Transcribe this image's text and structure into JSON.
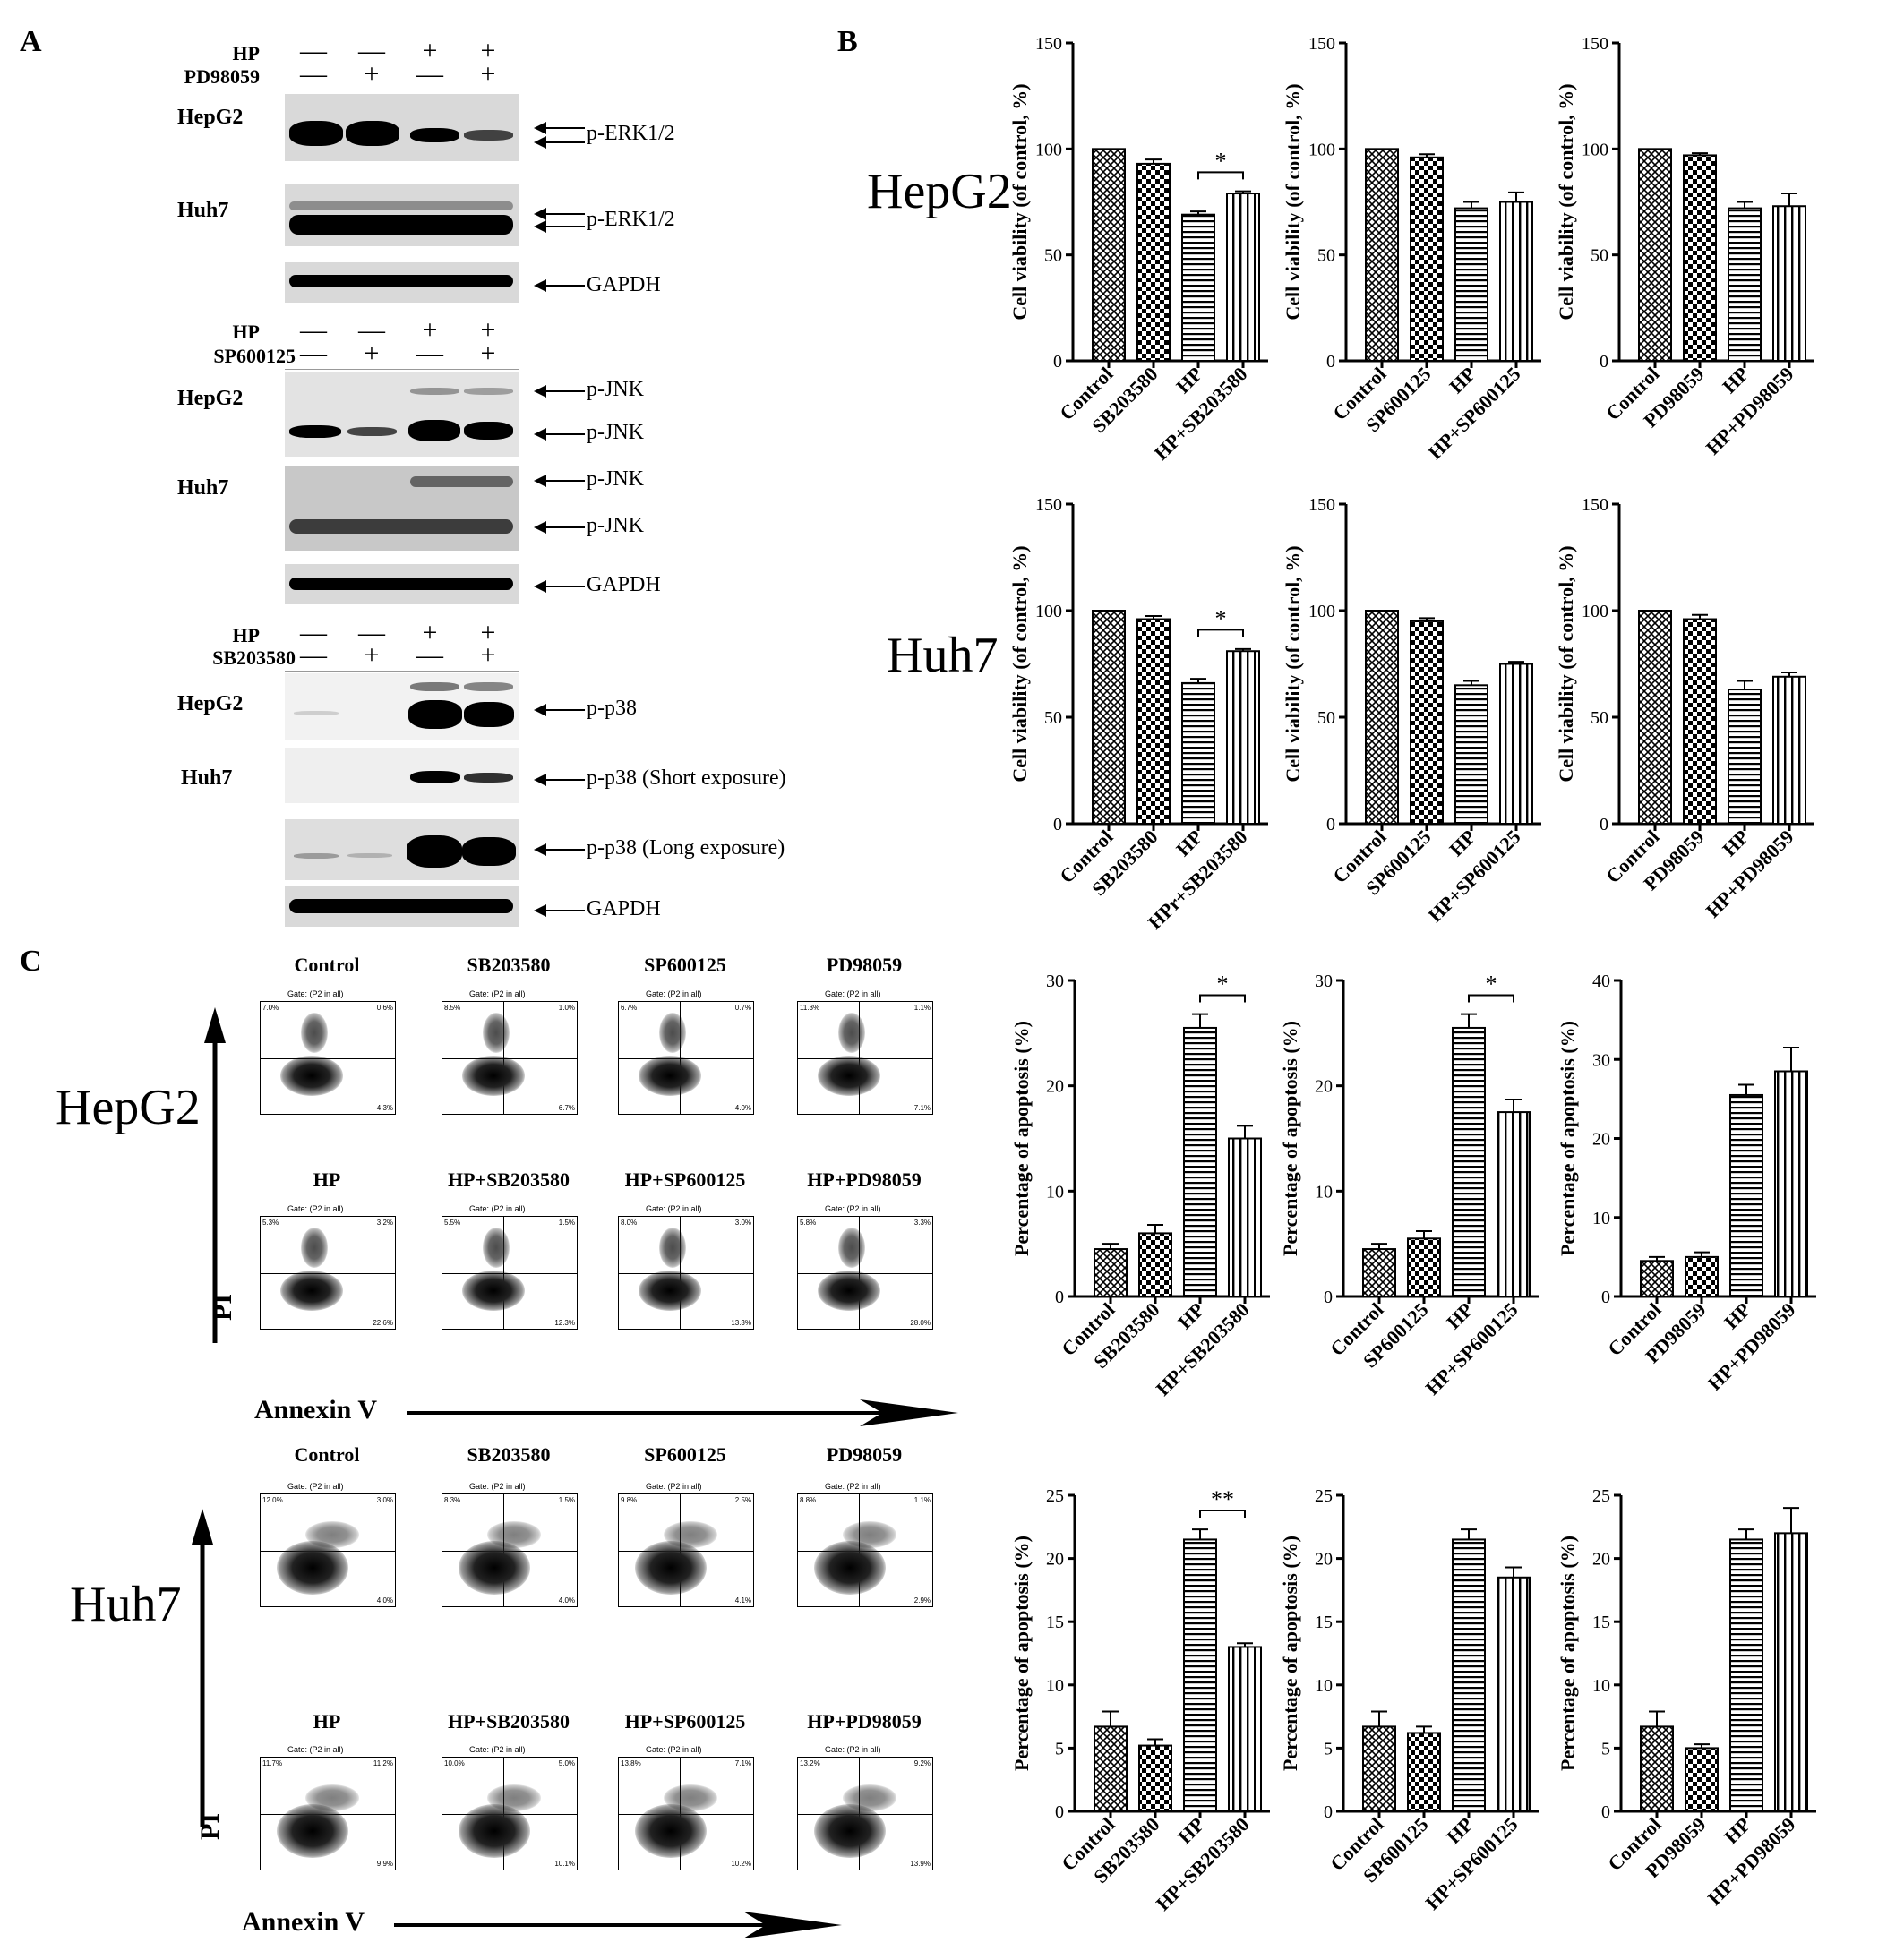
{
  "panels": {
    "A": "A",
    "B": "B",
    "C": "C"
  },
  "blots": {
    "erk": {
      "hp_label": "HP",
      "inh_label": "PD98059",
      "hp_signs": [
        "—",
        "—",
        "+",
        "+"
      ],
      "inh_signs": [
        "—",
        "+",
        "—",
        "+"
      ],
      "cell1": "HepG2",
      "cell2": "Huh7",
      "l1": "p-ERK1/2",
      "l2": "p-ERK1/2",
      "gapdh": "GAPDH"
    },
    "jnk": {
      "hp_label": "HP",
      "inh_label": "SP600125",
      "hp_signs": [
        "—",
        "—",
        "+",
        "+"
      ],
      "inh_signs": [
        "—",
        "+",
        "—",
        "+"
      ],
      "cell1": "HepG2",
      "cell2": "Huh7",
      "l1a": "p-JNK",
      "l1b": "p-JNK",
      "l2a": "p-JNK",
      "l2b": "p-JNK",
      "gapdh": "GAPDH"
    },
    "p38": {
      "hp_label": "HP",
      "inh_label": "SB203580",
      "hp_signs": [
        "—",
        "—",
        "+",
        "+"
      ],
      "inh_signs": [
        "—",
        "+",
        "—",
        "+"
      ],
      "cell1": "HepG2",
      "cell2": "Huh7",
      "l1": "p-p38",
      "l2": "p-p38 (Short exposure)",
      "l3": "p-p38 (Long exposure)",
      "gapdh": "GAPDH"
    }
  },
  "row_labels": {
    "b_hepg2": "HepG2",
    "b_huh7": "Huh7",
    "c_hepg2": "HepG2",
    "c_huh7": "Huh7"
  },
  "flow": {
    "hepg2_top": [
      "Control",
      "SB203580",
      "SP600125",
      "PD98059"
    ],
    "hepg2_bottom": [
      "HP",
      "HP+SB203580",
      "HP+SP600125",
      "HP+PD98059"
    ],
    "huh7_top": [
      "Control",
      "SB203580",
      "SP600125",
      "PD98059"
    ],
    "huh7_bottom": [
      "HP",
      "HP+SB203580",
      "HP+SP600125",
      "HP+PD98059"
    ],
    "gate": "Gate: (P2 in all)",
    "pi": "PI",
    "annexin": "Annexin V",
    "hepg2_q": [
      [
        "7.0%",
        "0.6%",
        "4.3%"
      ],
      [
        "8.5%",
        "1.0%",
        "6.7%"
      ],
      [
        "6.7%",
        "0.7%",
        "4.0%"
      ],
      [
        "11.3%",
        "1.1%",
        "7.1%"
      ],
      [
        "5.3%",
        "3.2%",
        "22.6%"
      ],
      [
        "5.5%",
        "1.5%",
        "12.3%"
      ],
      [
        "8.0%",
        "3.0%",
        "13.3%"
      ],
      [
        "5.8%",
        "3.3%",
        "28.0%"
      ]
    ],
    "huh7_q": [
      [
        "12.0%",
        "3.0%",
        "4.0%"
      ],
      [
        "8.3%",
        "1.5%",
        "4.0%"
      ],
      [
        "9.8%",
        "2.5%",
        "4.1%"
      ],
      [
        "8.8%",
        "1.1%",
        "2.9%"
      ],
      [
        "11.7%",
        "11.2%",
        "9.9%"
      ],
      [
        "10.0%",
        "5.0%",
        "10.1%"
      ],
      [
        "13.8%",
        "7.1%",
        "10.2%"
      ],
      [
        "13.2%",
        "9.2%",
        "13.9%"
      ]
    ]
  },
  "chart_data": [
    {
      "type": "bar",
      "id": "b1",
      "ylabel": "Cell viability (of control, %)",
      "categories": [
        "Control",
        "SB203580",
        "HP",
        "HP+SB203580"
      ],
      "values": [
        100,
        93,
        69,
        79
      ],
      "errors": [
        0,
        2,
        1.5,
        1
      ],
      "ylim": [
        0,
        150
      ],
      "yticks": [
        0,
        50,
        100,
        150
      ],
      "sig": {
        "from": 2,
        "to": 3,
        "label": "*"
      }
    },
    {
      "type": "bar",
      "id": "b2",
      "ylabel": "Cell viability (of control, %)",
      "categories": [
        "Control",
        "SP600125",
        "HP",
        "HP+SP600125"
      ],
      "values": [
        100,
        96,
        72,
        75
      ],
      "errors": [
        0,
        1.5,
        3,
        4.5
      ],
      "ylim": [
        0,
        150
      ],
      "yticks": [
        0,
        50,
        100,
        150
      ]
    },
    {
      "type": "bar",
      "id": "b3",
      "ylabel": "Cell viability (of control, %)",
      "categories": [
        "Control",
        "PD98059",
        "HP",
        "HP+PD98059"
      ],
      "values": [
        100,
        97,
        72,
        73
      ],
      "errors": [
        0,
        1,
        3,
        6
      ],
      "ylim": [
        0,
        150
      ],
      "yticks": [
        0,
        50,
        100,
        150
      ]
    },
    {
      "type": "bar",
      "id": "b4",
      "ylabel": "Cell viability (of control, %)",
      "categories": [
        "Control",
        "SB203580",
        "HP",
        "HPr+SB203580"
      ],
      "values": [
        100,
        96,
        66,
        81
      ],
      "errors": [
        0,
        1.5,
        2,
        1
      ],
      "ylim": [
        0,
        150
      ],
      "yticks": [
        0,
        50,
        100,
        150
      ],
      "sig": {
        "from": 2,
        "to": 3,
        "label": "*"
      }
    },
    {
      "type": "bar",
      "id": "b5",
      "ylabel": "Cell viability (of control, %)",
      "categories": [
        "Control",
        "SP600125",
        "HP",
        "HP+SP600125"
      ],
      "values": [
        100,
        95,
        65,
        75
      ],
      "errors": [
        0,
        1.5,
        2,
        1
      ],
      "ylim": [
        0,
        150
      ],
      "yticks": [
        0,
        50,
        100,
        150
      ]
    },
    {
      "type": "bar",
      "id": "b6",
      "ylabel": "Cell viability (of control, %)",
      "categories": [
        "Control",
        "PD98059",
        "HP",
        "HP+PD98059"
      ],
      "values": [
        100,
        96,
        63,
        69
      ],
      "errors": [
        0,
        2,
        4,
        2
      ],
      "ylim": [
        0,
        150
      ],
      "yticks": [
        0,
        50,
        100,
        150
      ]
    },
    {
      "type": "bar",
      "id": "c1",
      "ylabel": "Percentage of apoptosis (%)",
      "categories": [
        "Control",
        "SB203580",
        "HP",
        "HP+SB203580"
      ],
      "values": [
        4.5,
        6,
        25.5,
        15
      ],
      "errors": [
        0.5,
        0.8,
        1.3,
        1.2
      ],
      "ylim": [
        0,
        30
      ],
      "yticks": [
        0,
        10,
        20,
        30
      ],
      "sig": {
        "from": 2,
        "to": 3,
        "label": "*"
      }
    },
    {
      "type": "bar",
      "id": "c2",
      "ylabel": "Percentage of apoptosis (%)",
      "categories": [
        "Control",
        "SP600125",
        "HP",
        "HP+SP600125"
      ],
      "values": [
        4.5,
        5.5,
        25.5,
        17.5
      ],
      "errors": [
        0.5,
        0.7,
        1.3,
        1.2
      ],
      "ylim": [
        0,
        30
      ],
      "yticks": [
        0,
        10,
        20,
        30
      ],
      "sig": {
        "from": 2,
        "to": 3,
        "label": "*"
      }
    },
    {
      "type": "bar",
      "id": "c3",
      "ylabel": "Percentage of apoptosis (%)",
      "categories": [
        "Control",
        "PD98059",
        "HP",
        "HP+PD98059"
      ],
      "values": [
        4.5,
        5,
        25.5,
        28.5
      ],
      "errors": [
        0.5,
        0.6,
        1.3,
        3
      ],
      "ylim": [
        0,
        40
      ],
      "yticks": [
        0,
        10,
        20,
        30,
        40
      ]
    },
    {
      "type": "bar",
      "id": "c4",
      "ylabel": "Percentage of apoptosis (%)",
      "categories": [
        "Control",
        "SB203580",
        "HP",
        "HP+SB203580"
      ],
      "values": [
        6.7,
        5.2,
        21.5,
        13
      ],
      "errors": [
        1.2,
        0.5,
        0.8,
        0.3
      ],
      "ylim": [
        0,
        25
      ],
      "yticks": [
        0,
        5,
        10,
        15,
        20,
        25
      ],
      "sig": {
        "from": 2,
        "to": 3,
        "label": "**"
      }
    },
    {
      "type": "bar",
      "id": "c5",
      "ylabel": "Percentage of apoptosis (%)",
      "categories": [
        "Control",
        "SP600125",
        "HP",
        "HP+SP600125"
      ],
      "values": [
        6.7,
        6.2,
        21.5,
        18.5
      ],
      "errors": [
        1.2,
        0.5,
        0.8,
        0.8
      ],
      "ylim": [
        0,
        25
      ],
      "yticks": [
        0,
        5,
        10,
        15,
        20,
        25
      ]
    },
    {
      "type": "bar",
      "id": "c6",
      "ylabel": "Percentage of apoptosis (%)",
      "categories": [
        "Control",
        "PD98059",
        "HP",
        "HP+PD98059"
      ],
      "values": [
        6.7,
        5,
        21.5,
        22
      ],
      "errors": [
        1.2,
        0.3,
        0.8,
        2
      ],
      "ylim": [
        0,
        25
      ],
      "yticks": [
        0,
        5,
        10,
        15,
        20,
        25
      ]
    }
  ]
}
